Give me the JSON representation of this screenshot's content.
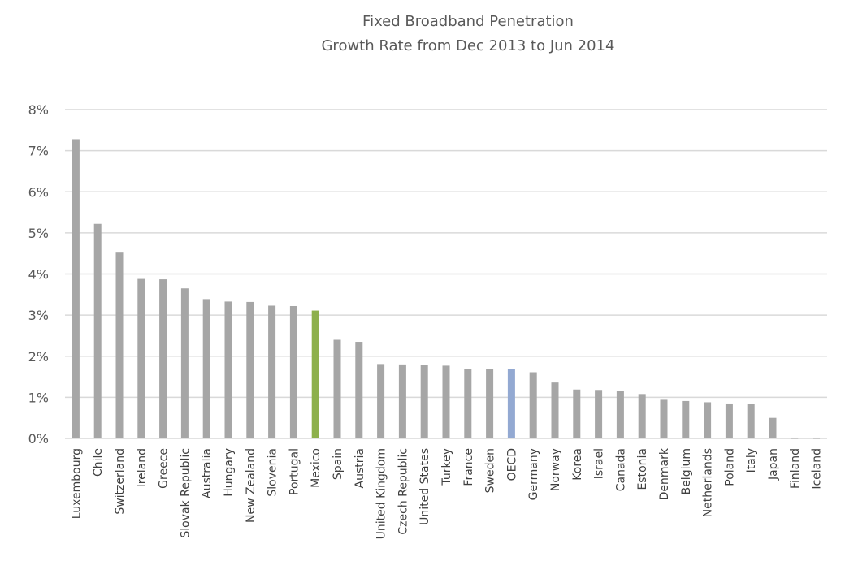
{
  "chart_data": {
    "type": "bar",
    "title": [
      "Fixed Broadband Penetration",
      "Growth Rate from Dec 2013 to Jun 2014"
    ],
    "xlabel": "",
    "ylabel": "",
    "ylim": [
      0,
      8
    ],
    "y_ticks": [
      "0%",
      "1%",
      "2%",
      "3%",
      "4%",
      "5%",
      "6%",
      "7%",
      "8%"
    ],
    "y_tick_values": [
      0,
      1,
      2,
      3,
      4,
      5,
      6,
      7,
      8
    ],
    "grid": true,
    "legend": "none",
    "categories": [
      "Luxembourg",
      "Chile",
      "Switzerland",
      "Ireland",
      "Greece",
      "Slovak Republic",
      "Australia",
      "Hungary",
      "New Zealand",
      "Slovenia",
      "Portugal",
      "Mexico",
      "Spain",
      "Austria",
      "United Kingdom",
      "Czech Republic",
      "United States",
      "Turkey",
      "France",
      "Sweden",
      "OECD",
      "Germany",
      "Norway",
      "Korea",
      "Israel",
      "Canada",
      "Estonia",
      "Denmark",
      "Belgium",
      "Netherlands",
      "Poland",
      "Italy",
      "Japan",
      "Finland",
      "Iceland"
    ],
    "values": [
      7.28,
      5.22,
      4.52,
      3.88,
      3.87,
      3.65,
      3.39,
      3.33,
      3.32,
      3.23,
      3.22,
      3.11,
      2.4,
      2.35,
      1.81,
      1.8,
      1.78,
      1.77,
      1.68,
      1.68,
      1.68,
      1.61,
      1.36,
      1.19,
      1.18,
      1.16,
      1.08,
      0.94,
      0.91,
      0.88,
      0.85,
      0.84,
      0.5,
      0.02,
      0.02
    ],
    "colors": {
      "default": "#a6a6a6",
      "highlight": "#8db04c",
      "oecd": "#93a9d2",
      "grid": "#d9d9d9",
      "text": "#595959"
    },
    "highlight_categories": {
      "Mexico": "highlight",
      "OECD": "oecd"
    }
  }
}
